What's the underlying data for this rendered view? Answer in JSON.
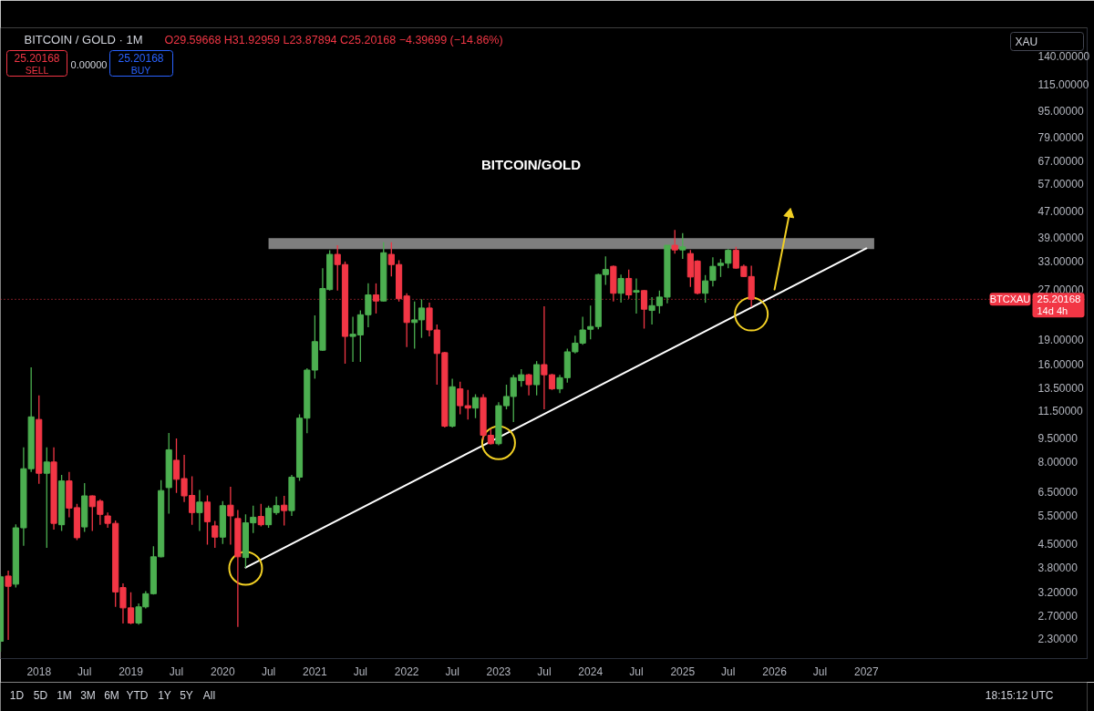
{
  "chart_data": {
    "type": "candlestick",
    "title": "BITCOIN/GOLD",
    "subtitle": "BITCOIN / GOLD · 1M",
    "ylabel": "XAU",
    "log": "y",
    "xlim": [
      "2017-08-01",
      "2029-05-27"
    ],
    "ylim": [
      2.0,
      171
    ],
    "xticks": [
      "2018",
      {
        "value": "2018-07",
        "label": "Jul"
      },
      "2019",
      {
        "value": "2019-07",
        "label": "Jul"
      },
      "2020",
      {
        "value": "2020-07",
        "label": "Jul"
      },
      "2021",
      {
        "value": "2021-07",
        "label": "Jul"
      },
      "2022",
      {
        "value": "2022-07",
        "label": "Jul"
      },
      "2023",
      {
        "value": "2023-07",
        "label": "Jul"
      },
      "2024",
      {
        "value": "2024-07",
        "label": "Jul"
      },
      "2025",
      {
        "value": "2025-07",
        "label": "Jul"
      },
      "2026",
      {
        "value": "2026-07",
        "label": "Jul"
      },
      "2027"
    ],
    "yticks": [
      {
        "value": 140,
        "label": "140.00000"
      },
      {
        "value": 115,
        "label": "115.00000"
      },
      {
        "value": 95,
        "label": "95.00000"
      },
      {
        "value": 79,
        "label": "79.00000"
      },
      {
        "value": 67,
        "label": "67.00000"
      },
      {
        "value": 57,
        "label": "57.00000"
      },
      {
        "value": 47,
        "label": "47.00000"
      },
      {
        "value": 39,
        "label": "39.00000"
      },
      {
        "value": 33,
        "label": "33.00000"
      },
      {
        "value": 27,
        "label": "27.00000"
      },
      {
        "value": 19,
        "label": "19.00000"
      },
      {
        "value": 16,
        "label": "16.00000"
      },
      {
        "value": 13.5,
        "label": "13.50000"
      },
      {
        "value": 11.5,
        "label": "11.50000"
      },
      {
        "value": 9.5,
        "label": "9.50000"
      },
      {
        "value": 8,
        "label": "8.00000"
      },
      {
        "value": 6.5,
        "label": "6.50000"
      },
      {
        "value": 5.5,
        "label": "5.50000"
      },
      {
        "value": 4.5,
        "label": "4.50000"
      },
      {
        "value": 3.8,
        "label": "3.80000"
      },
      {
        "value": 3.2,
        "label": "3.20000"
      },
      {
        "value": 2.7,
        "label": "2.70000"
      },
      {
        "value": 2.3,
        "label": "2.30000"
      }
    ],
    "x": [
      "2017-08",
      "2017-09",
      "2017-10",
      "2017-11",
      "2017-12",
      "2018-01",
      "2018-02",
      "2018-03",
      "2018-04",
      "2018-05",
      "2018-06",
      "2018-07",
      "2018-08",
      "2018-09",
      "2018-10",
      "2018-11",
      "2018-12",
      "2019-01",
      "2019-02",
      "2019-03",
      "2019-04",
      "2019-05",
      "2019-06",
      "2019-07",
      "2019-08",
      "2019-09",
      "2019-10",
      "2019-11",
      "2019-12",
      "2020-01",
      "2020-02",
      "2020-03",
      "2020-04",
      "2020-05",
      "2020-06",
      "2020-07",
      "2020-08",
      "2020-09",
      "2020-10",
      "2020-11",
      "2020-12",
      "2021-01",
      "2021-02",
      "2021-03",
      "2021-04",
      "2021-05",
      "2021-06",
      "2021-07",
      "2021-08",
      "2021-09",
      "2021-10",
      "2021-11",
      "2021-12",
      "2022-01",
      "2022-02",
      "2022-03",
      "2022-04",
      "2022-05",
      "2022-06",
      "2022-07",
      "2022-08",
      "2022-09",
      "2022-10",
      "2022-11",
      "2022-12",
      "2023-01",
      "2023-02",
      "2023-03",
      "2023-04",
      "2023-05",
      "2023-06",
      "2023-07",
      "2023-08",
      "2023-09",
      "2023-10",
      "2023-11",
      "2023-12",
      "2024-01",
      "2024-02",
      "2024-03",
      "2024-04",
      "2024-05",
      "2024-06",
      "2024-07",
      "2024-08",
      "2024-09",
      "2024-10",
      "2024-11",
      "2024-12",
      "2025-01",
      "2025-02",
      "2025-03",
      "2025-04",
      "2025-05",
      "2025-06",
      "2025-07",
      "2025-08",
      "2025-09",
      "2025-10"
    ],
    "ohlc": [
      [
        2.26,
        3.62,
        2.1,
        3.56
      ],
      [
        3.58,
        3.72,
        2.28,
        3.33
      ],
      [
        3.38,
        5.15,
        3.3,
        5.03
      ],
      [
        5.03,
        8.87,
        4.43,
        7.63
      ],
      [
        7.63,
        15.6,
        7.46,
        11.0
      ],
      [
        10.8,
        12.8,
        6.86,
        7.39
      ],
      [
        7.39,
        8.87,
        4.37,
        8.0
      ],
      [
        8.0,
        8.87,
        4.97,
        5.19
      ],
      [
        5.14,
        7.31,
        4.92,
        7.0
      ],
      [
        7.0,
        7.46,
        5.42,
        5.78
      ],
      [
        5.8,
        5.96,
        4.61,
        4.69
      ],
      [
        5.06,
        6.89,
        4.89,
        6.3
      ],
      [
        6.3,
        6.32,
        4.92,
        5.84
      ],
      [
        6.07,
        6.15,
        5.14,
        5.53
      ],
      [
        5.47,
        5.6,
        5.03,
        5.19
      ],
      [
        5.19,
        5.3,
        2.88,
        3.2
      ],
      [
        3.3,
        3.4,
        2.56,
        2.86
      ],
      [
        2.86,
        3.19,
        2.55,
        2.57
      ],
      [
        2.57,
        2.95,
        2.54,
        2.88
      ],
      [
        2.88,
        3.22,
        2.85,
        3.16
      ],
      [
        3.16,
        4.42,
        3.14,
        4.1
      ],
      [
        4.1,
        7.04,
        4.08,
        6.54
      ],
      [
        6.68,
        9.82,
        5.56,
        8.72
      ],
      [
        8.1,
        9.45,
        6.43,
        7.08
      ],
      [
        7.12,
        8.41,
        6.03,
        6.3
      ],
      [
        6.32,
        7.23,
        5.14,
        5.6
      ],
      [
        5.6,
        6.57,
        4.92,
        6.03
      ],
      [
        6.03,
        6.32,
        4.47,
        5.25
      ],
      [
        5.1,
        5.28,
        4.37,
        4.71
      ],
      [
        4.71,
        6.07,
        4.49,
        5.88
      ],
      [
        5.9,
        6.72,
        4.47,
        5.47
      ],
      [
        5.37,
        5.7,
        2.5,
        4.1
      ],
      [
        4.08,
        5.53,
        3.8,
        5.21
      ],
      [
        5.21,
        5.88,
        4.85,
        5.42
      ],
      [
        5.45,
        5.96,
        5.08,
        5.14
      ],
      [
        5.14,
        5.88,
        5.03,
        5.78
      ],
      [
        5.6,
        6.27,
        5.51,
        5.88
      ],
      [
        5.9,
        6.3,
        5.11,
        5.68
      ],
      [
        5.68,
        7.31,
        5.47,
        7.19
      ],
      [
        7.19,
        11.2,
        7.0,
        10.9
      ],
      [
        10.9,
        15.5,
        9.8,
        15.3
      ],
      [
        15.3,
        22.5,
        14.4,
        18.7
      ],
      [
        17.6,
        31.4,
        17.5,
        27.2
      ],
      [
        27.0,
        35.6,
        26.8,
        34.6
      ],
      [
        34.6,
        36.9,
        26.8,
        32.2
      ],
      [
        32.2,
        32.9,
        16.0,
        19.4
      ],
      [
        19.4,
        22.3,
        16.2,
        19.7
      ],
      [
        19.6,
        23.3,
        16.2,
        22.6
      ],
      [
        22.6,
        28.2,
        20.7,
        26.0
      ],
      [
        26.0,
        28.2,
        22.8,
        24.9
      ],
      [
        24.9,
        37.7,
        24.8,
        35.0
      ],
      [
        34.6,
        37.7,
        29.6,
        32.2
      ],
      [
        32.2,
        33.2,
        24.8,
        25.3
      ],
      [
        25.8,
        26.3,
        18.0,
        21.4
      ],
      [
        21.4,
        24.8,
        17.8,
        21.8
      ],
      [
        21.8,
        25.2,
        19.2,
        23.7
      ],
      [
        23.7,
        24.6,
        19.4,
        20.3
      ],
      [
        20.3,
        21.1,
        13.8,
        17.2
      ],
      [
        17.3,
        17.4,
        10.2,
        10.3
      ],
      [
        10.3,
        14.4,
        10.2,
        13.6
      ],
      [
        13.4,
        14.1,
        11.2,
        11.9
      ],
      [
        11.9,
        13.3,
        10.8,
        11.7
      ],
      [
        11.7,
        12.9,
        10.9,
        12.6
      ],
      [
        12.6,
        12.9,
        9.36,
        9.66
      ],
      [
        9.66,
        10.1,
        9.05,
        9.1
      ],
      [
        9.1,
        12.2,
        9.0,
        11.9
      ],
      [
        11.9,
        13.8,
        11.6,
        12.7
      ],
      [
        12.7,
        14.8,
        10.6,
        14.5
      ],
      [
        14.2,
        15.4,
        13.6,
        14.8
      ],
      [
        14.8,
        14.9,
        12.8,
        13.8
      ],
      [
        13.8,
        16.3,
        12.8,
        15.9
      ],
      [
        15.9,
        24.0,
        11.6,
        14.8
      ],
      [
        14.8,
        14.9,
        13.3,
        13.4
      ],
      [
        13.4,
        14.8,
        13.0,
        14.5
      ],
      [
        14.5,
        17.8,
        14.0,
        17.4
      ],
      [
        17.4,
        19.5,
        17.2,
        18.5
      ],
      [
        18.5,
        22.3,
        18.3,
        20.3
      ],
      [
        20.4,
        24.1,
        19.0,
        20.8
      ],
      [
        20.8,
        30.2,
        20.4,
        30.0
      ],
      [
        30.0,
        34.1,
        27.9,
        31.1
      ],
      [
        31.8,
        32.0,
        24.8,
        26.3
      ],
      [
        26.3,
        30.0,
        24.6,
        29.2
      ],
      [
        29.2,
        31.1,
        25.3,
        26.0
      ],
      [
        26.5,
        29.2,
        22.8,
        26.8
      ],
      [
        26.8,
        26.9,
        20.5,
        23.5
      ],
      [
        23.3,
        25.6,
        21.1,
        24.1
      ],
      [
        24.1,
        26.8,
        22.8,
        25.6
      ],
      [
        25.6,
        36.9,
        24.5,
        36.9
      ],
      [
        36.9,
        41.1,
        34.8,
        35.7
      ],
      [
        35.7,
        40.2,
        33.5,
        36.5
      ],
      [
        34.8,
        35.7,
        27.5,
        29.5
      ],
      [
        33.0,
        33.2,
        26.1,
        26.3
      ],
      [
        26.3,
        29.9,
        24.6,
        28.7
      ],
      [
        28.8,
        33.9,
        27.6,
        31.8
      ],
      [
        32.0,
        33.5,
        29.5,
        32.5
      ],
      [
        32.5,
        35.9,
        31.4,
        35.6
      ],
      [
        35.6,
        36.5,
        31.3,
        31.4
      ],
      [
        31.8,
        32.2,
        29.5,
        29.6
      ],
      [
        29.59668,
        31.92959,
        23.87894,
        25.20168
      ]
    ],
    "colors": [
      "#4caf50",
      "#f23645",
      "#4caf50",
      "#4caf50",
      "#4caf50",
      "#f23645",
      "#4caf50",
      "#f23645",
      "#4caf50",
      "#f23645",
      "#f23645",
      "#4caf50",
      "#f23645",
      "#f23645",
      "#f23645",
      "#f23645",
      "#f23645",
      "#f23645",
      "#4caf50",
      "#4caf50",
      "#4caf50",
      "#4caf50",
      "#4caf50",
      "#f23645",
      "#f23645",
      "#f23645",
      "#4caf50",
      "#f23645",
      "#f23645",
      "#4caf50",
      "#f23645",
      "#f23645",
      "#4caf50",
      "#4caf50",
      "#f23645",
      "#4caf50",
      "#4caf50",
      "#f23645",
      "#4caf50",
      "#4caf50",
      "#4caf50",
      "#4caf50",
      "#4caf50",
      "#4caf50",
      "#f23645",
      "#f23645",
      "#4caf50",
      "#4caf50",
      "#4caf50",
      "#f23645",
      "#4caf50",
      "#f23645",
      "#f23645",
      "#f23645",
      "#4caf50",
      "#4caf50",
      "#f23645",
      "#f23645",
      "#f23645",
      "#4caf50",
      "#f23645",
      "#f23645",
      "#4caf50",
      "#f23645",
      "#f23645",
      "#4caf50",
      "#4caf50",
      "#4caf50",
      "#4caf50",
      "#f23645",
      "#4caf50",
      "#f23645",
      "#f23645",
      "#4caf50",
      "#4caf50",
      "#4caf50",
      "#4caf50",
      "#4caf50",
      "#4caf50",
      "#4caf50",
      "#f23645",
      "#4caf50",
      "#f23645",
      "#4caf50",
      "#f23645",
      "#4caf50",
      "#4caf50",
      "#4caf50",
      "#f23645",
      "#4caf50",
      "#f23645",
      "#f23645",
      "#4caf50",
      "#4caf50",
      "#4caf50",
      "#4caf50",
      "#f23645",
      "#f23645",
      "#f23645"
    ],
    "series": [
      {
        "type": "line",
        "x": [
          "2020-07",
          "2027-02"
        ],
        "values": [
          null,
          null
        ],
        "lower": [
          35.9,
          35.9
        ],
        "upper": [
          38.8,
          38.8
        ],
        "color": "#7f7f7f"
      },
      {
        "type": "line",
        "x": [
          "2020-04",
          "2027-01"
        ],
        "values": [
          3.8,
          36.1
        ],
        "color": "#ffffff"
      },
      {
        "type": "scatter",
        "x": [
          "2020-04",
          "2023-01",
          "2025-10"
        ],
        "values": [
          3.78,
          9.16,
          22.7
        ],
        "color": "#f2d024",
        "marker": "circle"
      },
      {
        "type": "line",
        "x": [
          "2026-01",
          "2026-03"
        ],
        "values": [
          27.0,
          46.0
        ],
        "color": "#f2d024",
        "marker": "triangle"
      }
    ],
    "ref_lines": [
      {
        "axis": "y",
        "value": 25.20168,
        "label": "BTCXAU",
        "color": "#f23645",
        "line_style": "dotted"
      }
    ],
    "annotations": [
      "O29.59668 H31.92959 L23.87894 C25.20168 −4.39699 (−14.86%)",
      "25.20168",
      "SELL",
      "0.00000",
      "25.20168",
      "BUY",
      "25.20168",
      "14d 4h",
      "1D",
      "5D",
      "1M",
      "3M",
      "6M",
      "YTD",
      "1Y",
      "5Y",
      "All",
      "18:15:12 UTC"
    ]
  }
}
